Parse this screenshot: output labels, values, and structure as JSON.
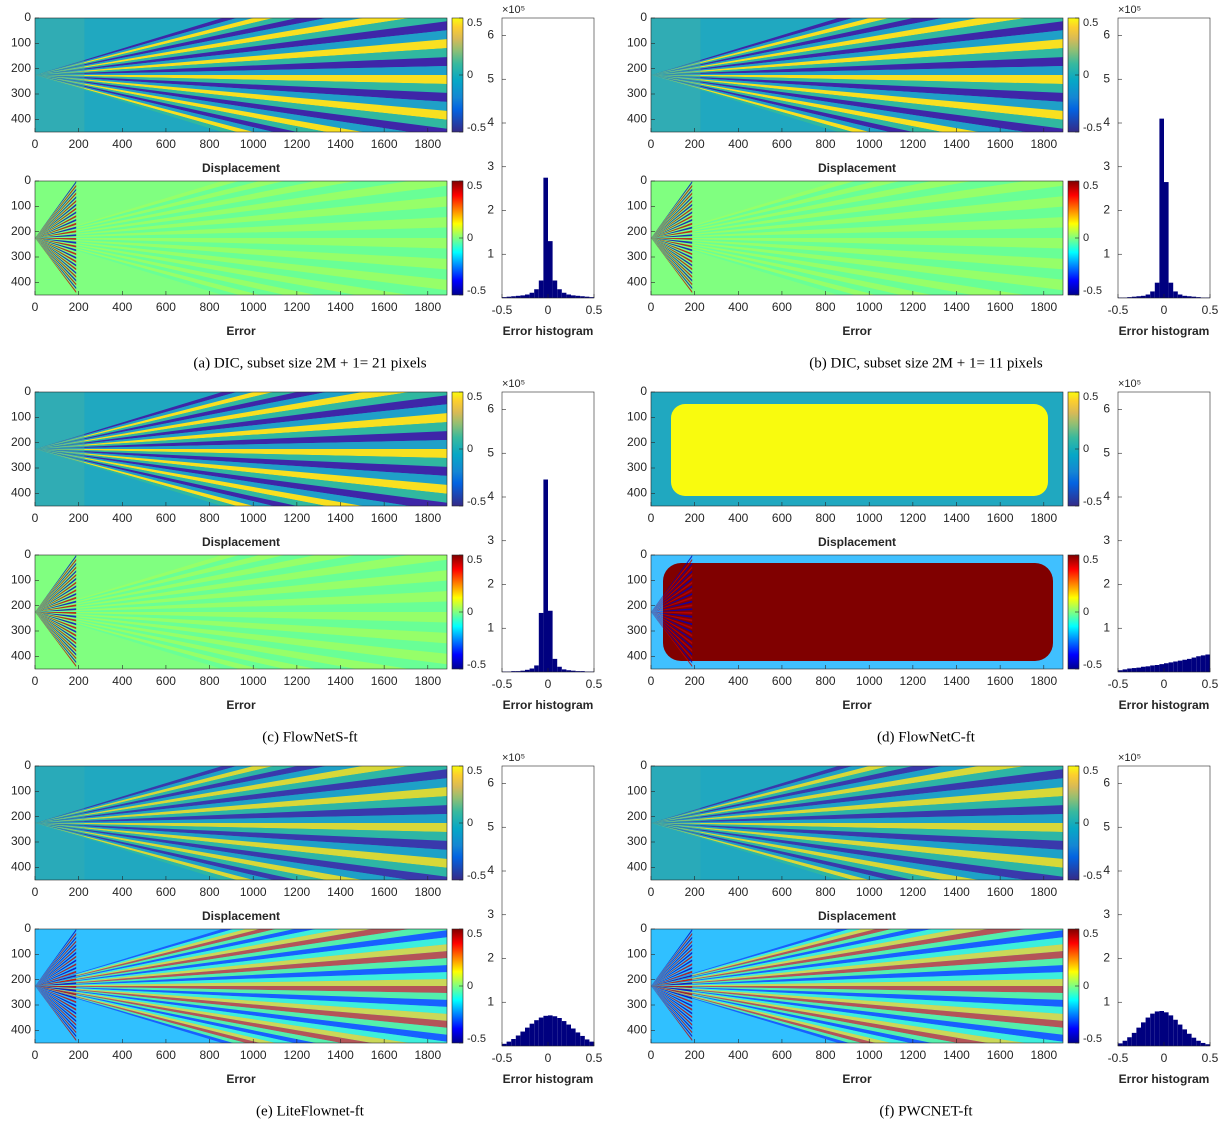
{
  "axes": {
    "map_xticks": [
      0,
      200,
      400,
      600,
      800,
      1000,
      1200,
      1400,
      1600,
      1800
    ],
    "map_yticks": [
      0,
      100,
      200,
      300,
      400
    ],
    "map_xlim": [
      0,
      1888
    ],
    "map_ylim": [
      0,
      450
    ],
    "colorbar_ticks": [
      0.5,
      0,
      -0.5
    ],
    "colorbar_lim": [
      -0.5,
      0.5
    ],
    "displacement_label": "Displacement",
    "error_label": "Error"
  },
  "panels": [
    {
      "caption": "(a) DIC, subset size 2M + 1= 21 pixels",
      "histogram": {
        "type": "histogram",
        "bins": [
          -0.5,
          -0.45,
          -0.4,
          -0.35,
          -0.3,
          -0.25,
          -0.2,
          -0.15,
          -0.1,
          -0.05,
          0,
          0.05,
          0.1,
          0.15,
          0.2,
          0.25,
          0.3,
          0.35,
          0.4,
          0.45,
          0.5
        ],
        "counts": [
          0.02,
          0.03,
          0.04,
          0.05,
          0.06,
          0.08,
          0.12,
          0.2,
          0.4,
          2.75,
          1.3,
          0.4,
          0.2,
          0.12,
          0.08,
          0.06,
          0.05,
          0.04,
          0.03,
          0.02
        ],
        "color": "#00007f",
        "xlim": [
          -0.5,
          0.5
        ],
        "xticks": [
          -0.5,
          0,
          0.5
        ],
        "ylim": [
          0,
          6.4
        ],
        "yticks": [
          1,
          2,
          3,
          4,
          5,
          6
        ],
        "multiplier": "×10⁵",
        "xlabel": "Error histogram"
      }
    },
    {
      "caption": "(b) DIC, subset size 2M + 1= 11 pixels",
      "histogram": {
        "type": "histogram",
        "bins": [
          -0.5,
          -0.45,
          -0.4,
          -0.35,
          -0.3,
          -0.25,
          -0.2,
          -0.15,
          -0.1,
          -0.05,
          0,
          0.05,
          0.1,
          0.15,
          0.2,
          0.25,
          0.3,
          0.35,
          0.4,
          0.45,
          0.5
        ],
        "counts": [
          0.01,
          0.01,
          0.02,
          0.03,
          0.04,
          0.05,
          0.08,
          0.15,
          0.35,
          4.1,
          2.65,
          0.35,
          0.15,
          0.08,
          0.05,
          0.04,
          0.03,
          0.02,
          0.01,
          0.01
        ],
        "color": "#00007f",
        "xlim": [
          -0.5,
          0.5
        ],
        "xticks": [
          -0.5,
          0,
          0.5
        ],
        "ylim": [
          0,
          6.4
        ],
        "yticks": [
          1,
          2,
          3,
          4,
          5,
          6
        ],
        "multiplier": "×10⁵",
        "xlabel": "Error histogram"
      }
    },
    {
      "caption": "(c) FlowNetS-ft",
      "histogram": {
        "type": "histogram",
        "bins": [
          -0.5,
          -0.45,
          -0.4,
          -0.35,
          -0.3,
          -0.25,
          -0.2,
          -0.15,
          -0.1,
          -0.05,
          0,
          0.05,
          0.1,
          0.15,
          0.2,
          0.25,
          0.3,
          0.35,
          0.4,
          0.45,
          0.5
        ],
        "counts": [
          0.01,
          0.01,
          0.02,
          0.02,
          0.03,
          0.05,
          0.08,
          0.15,
          1.35,
          4.4,
          1.4,
          0.3,
          0.12,
          0.06,
          0.04,
          0.03,
          0.02,
          0.02,
          0.01,
          0.01
        ],
        "color": "#00007f",
        "xlim": [
          -0.5,
          0.5
        ],
        "xticks": [
          -0.5,
          0,
          0.5
        ],
        "ylim": [
          0,
          6.4
        ],
        "yticks": [
          1,
          2,
          3,
          4,
          5,
          6
        ],
        "multiplier": "×10⁵",
        "xlabel": "Error histogram"
      }
    },
    {
      "caption": "(d) FlowNetC-ft",
      "histogram": {
        "type": "histogram",
        "bins": [
          -0.5,
          -0.45,
          -0.4,
          -0.35,
          -0.3,
          -0.25,
          -0.2,
          -0.15,
          -0.1,
          -0.05,
          0,
          0.05,
          0.1,
          0.15,
          0.2,
          0.25,
          0.3,
          0.35,
          0.4,
          0.45,
          0.5
        ],
        "counts": [
          0.04,
          0.06,
          0.08,
          0.09,
          0.1,
          0.12,
          0.13,
          0.15,
          0.16,
          0.18,
          0.2,
          0.22,
          0.24,
          0.26,
          0.28,
          0.3,
          0.33,
          0.36,
          0.38,
          0.4
        ],
        "color": "#00007f",
        "xlim": [
          -0.5,
          0.5
        ],
        "xticks": [
          -0.5,
          0,
          0.5
        ],
        "ylim": [
          0,
          6.4
        ],
        "yticks": [
          1,
          2,
          3,
          4,
          5,
          6
        ],
        "multiplier": "×10⁵",
        "xlabel": "Error histogram"
      }
    },
    {
      "caption": "(e) LiteFlownet-ft",
      "histogram": {
        "type": "histogram",
        "bins": [
          -0.5,
          -0.45,
          -0.4,
          -0.35,
          -0.3,
          -0.25,
          -0.2,
          -0.15,
          -0.1,
          -0.05,
          0,
          0.05,
          0.1,
          0.15,
          0.2,
          0.25,
          0.3,
          0.35,
          0.4,
          0.45,
          0.5
        ],
        "counts": [
          0.05,
          0.1,
          0.16,
          0.24,
          0.33,
          0.42,
          0.51,
          0.59,
          0.65,
          0.69,
          0.7,
          0.68,
          0.64,
          0.57,
          0.49,
          0.4,
          0.31,
          0.23,
          0.15,
          0.1
        ],
        "color": "#00007f",
        "xlim": [
          -0.5,
          0.5
        ],
        "xticks": [
          -0.5,
          0,
          0.5
        ],
        "ylim": [
          0,
          6.4
        ],
        "yticks": [
          1,
          2,
          3,
          4,
          5,
          6
        ],
        "multiplier": "×10⁵",
        "xlabel": "Error histogram"
      }
    },
    {
      "caption": "(f) PWCNET-ft",
      "histogram": {
        "type": "histogram",
        "bins": [
          -0.5,
          -0.45,
          -0.4,
          -0.35,
          -0.3,
          -0.25,
          -0.2,
          -0.15,
          -0.1,
          -0.05,
          0,
          0.05,
          0.1,
          0.15,
          0.2,
          0.25,
          0.3,
          0.35,
          0.4,
          0.45,
          0.5
        ],
        "counts": [
          0.06,
          0.12,
          0.2,
          0.3,
          0.42,
          0.54,
          0.65,
          0.74,
          0.79,
          0.8,
          0.77,
          0.7,
          0.6,
          0.49,
          0.38,
          0.28,
          0.19,
          0.12,
          0.07,
          0.04
        ],
        "color": "#00007f",
        "xlim": [
          -0.5,
          0.5
        ],
        "xticks": [
          -0.5,
          0,
          0.5
        ],
        "ylim": [
          0,
          6.4
        ],
        "yticks": [
          1,
          2,
          3,
          4,
          5,
          6
        ],
        "multiplier": "×10⁵",
        "xlabel": "Error histogram"
      }
    }
  ]
}
